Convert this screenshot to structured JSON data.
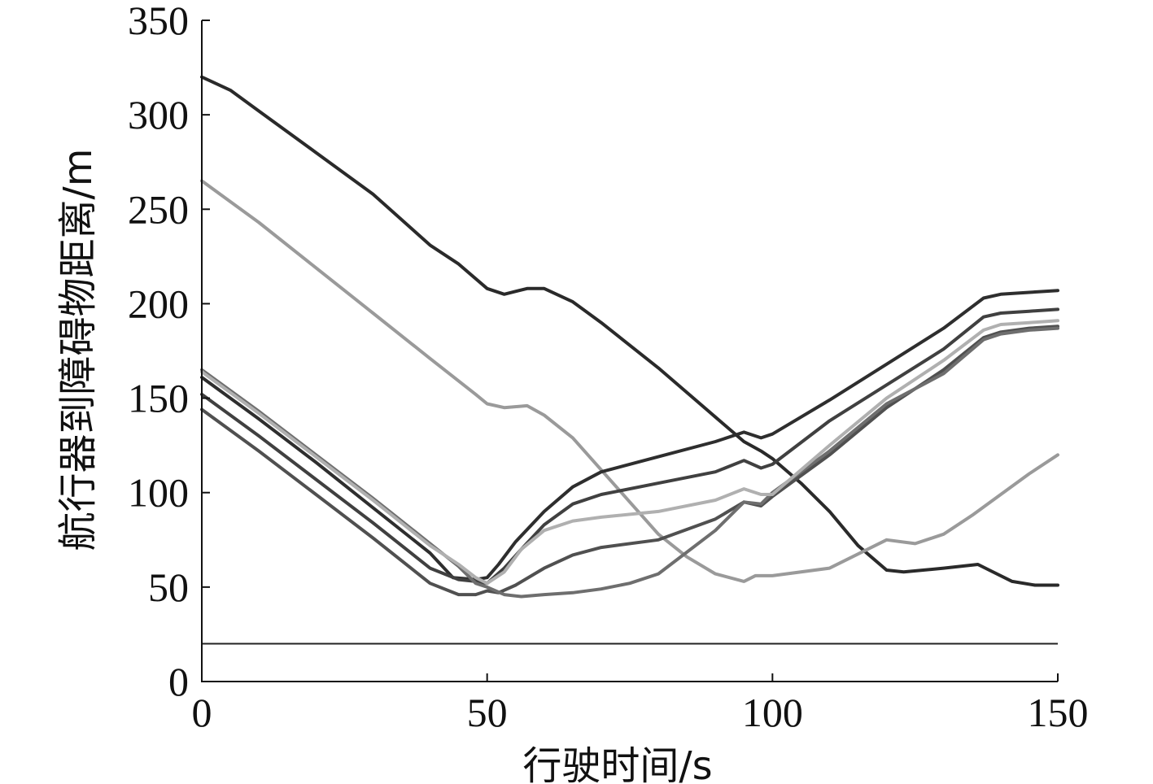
{
  "chart_data": {
    "type": "line",
    "title": "",
    "xlabel": "行驶时间/s",
    "ylabel": "航行器到障碍物距离/m",
    "xlim": [
      0,
      150
    ],
    "ylim": [
      0,
      350
    ],
    "xticks": [
      0,
      50,
      100,
      150
    ],
    "yticks": [
      0,
      50,
      100,
      150,
      200,
      250,
      300,
      350
    ],
    "grid": false,
    "legend": "none",
    "reference_line": {
      "y": 20
    },
    "series": [
      {
        "color": "#2a2a2a",
        "x": [
          0,
          5,
          10,
          20,
          30,
          40,
          45,
          50,
          53,
          57,
          60,
          65,
          70,
          80,
          90,
          95,
          98,
          100,
          105,
          110,
          115,
          120,
          123,
          130,
          136,
          138,
          142,
          146,
          150
        ],
        "y": [
          320,
          313,
          302,
          280,
          258,
          231,
          221,
          208,
          205,
          208,
          208,
          201,
          190,
          166,
          140,
          127,
          122,
          118,
          105,
          90,
          72,
          59,
          58,
          60,
          62,
          59,
          53,
          51,
          51
        ]
      },
      {
        "color": "#9a9a9a",
        "x": [
          0,
          10,
          20,
          30,
          40,
          48,
          50,
          53,
          57,
          60,
          65,
          70,
          75,
          80,
          85,
          90,
          95,
          97,
          100,
          110,
          120,
          125,
          130,
          135,
          140,
          145,
          150
        ],
        "y": [
          265,
          243,
          219,
          195,
          171,
          152,
          147,
          145,
          146,
          141,
          129,
          112,
          95,
          78,
          66,
          57,
          53,
          56,
          56,
          60,
          75,
          73,
          78,
          88,
          99,
          110,
          120
        ]
      },
      {
        "color": "#2e2e2e",
        "x": [
          0,
          10,
          20,
          30,
          40,
          44,
          48,
          50,
          52,
          55,
          60,
          65,
          70,
          80,
          90,
          95,
          98,
          100,
          110,
          120,
          130,
          137,
          140,
          145,
          150
        ],
        "y": [
          161,
          139,
          116,
          92,
          68,
          55,
          54,
          55,
          62,
          74,
          90,
          103,
          111,
          119,
          127,
          132,
          129,
          131,
          149,
          168,
          187,
          203,
          205,
          206,
          207
        ]
      },
      {
        "color": "#404040",
        "x": [
          0,
          10,
          20,
          30,
          40,
          45,
          48,
          50,
          53,
          56,
          60,
          65,
          70,
          80,
          90,
          95,
          98,
          100,
          110,
          120,
          130,
          137,
          140,
          145,
          150
        ],
        "y": [
          152,
          130,
          107,
          84,
          60,
          54,
          53,
          52,
          60,
          70,
          83,
          94,
          99,
          105,
          111,
          117,
          113,
          115,
          138,
          157,
          176,
          193,
          195,
          196,
          197
        ]
      },
      {
        "color": "#505050",
        "x": [
          0,
          10,
          20,
          30,
          40,
          45,
          48,
          50,
          52,
          55,
          60,
          65,
          70,
          80,
          90,
          95,
          98,
          100,
          110,
          120,
          130,
          137,
          140,
          145,
          150
        ],
        "y": [
          144,
          122,
          99,
          76,
          52,
          46,
          46,
          48,
          47,
          51,
          60,
          67,
          71,
          75,
          86,
          95,
          93,
          98,
          120,
          145,
          165,
          182,
          185,
          187,
          188
        ]
      },
      {
        "color": "#6e6e6e",
        "x": [
          0,
          10,
          20,
          30,
          40,
          45,
          48,
          50,
          53,
          56,
          60,
          65,
          70,
          75,
          80,
          90,
          95,
          98,
          100,
          110,
          120,
          130,
          137,
          140,
          145,
          150
        ],
        "y": [
          165,
          143,
          120,
          97,
          73,
          61,
          52,
          50,
          46,
          45,
          46,
          47,
          49,
          52,
          57,
          80,
          95,
          94,
          100,
          122,
          147,
          163,
          181,
          184,
          186,
          187
        ]
      },
      {
        "color": "#b0b0b0",
        "x": [
          0,
          10,
          20,
          30,
          40,
          45,
          48,
          50,
          53,
          56,
          60,
          65,
          70,
          80,
          90,
          95,
          98,
          100,
          110,
          120,
          130,
          137,
          140,
          145,
          150
        ],
        "y": [
          164,
          142,
          119,
          96,
          72,
          62,
          55,
          52,
          58,
          70,
          80,
          85,
          87,
          90,
          96,
          102,
          99,
          99,
          125,
          150,
          170,
          186,
          189,
          190,
          191
        ]
      }
    ]
  }
}
